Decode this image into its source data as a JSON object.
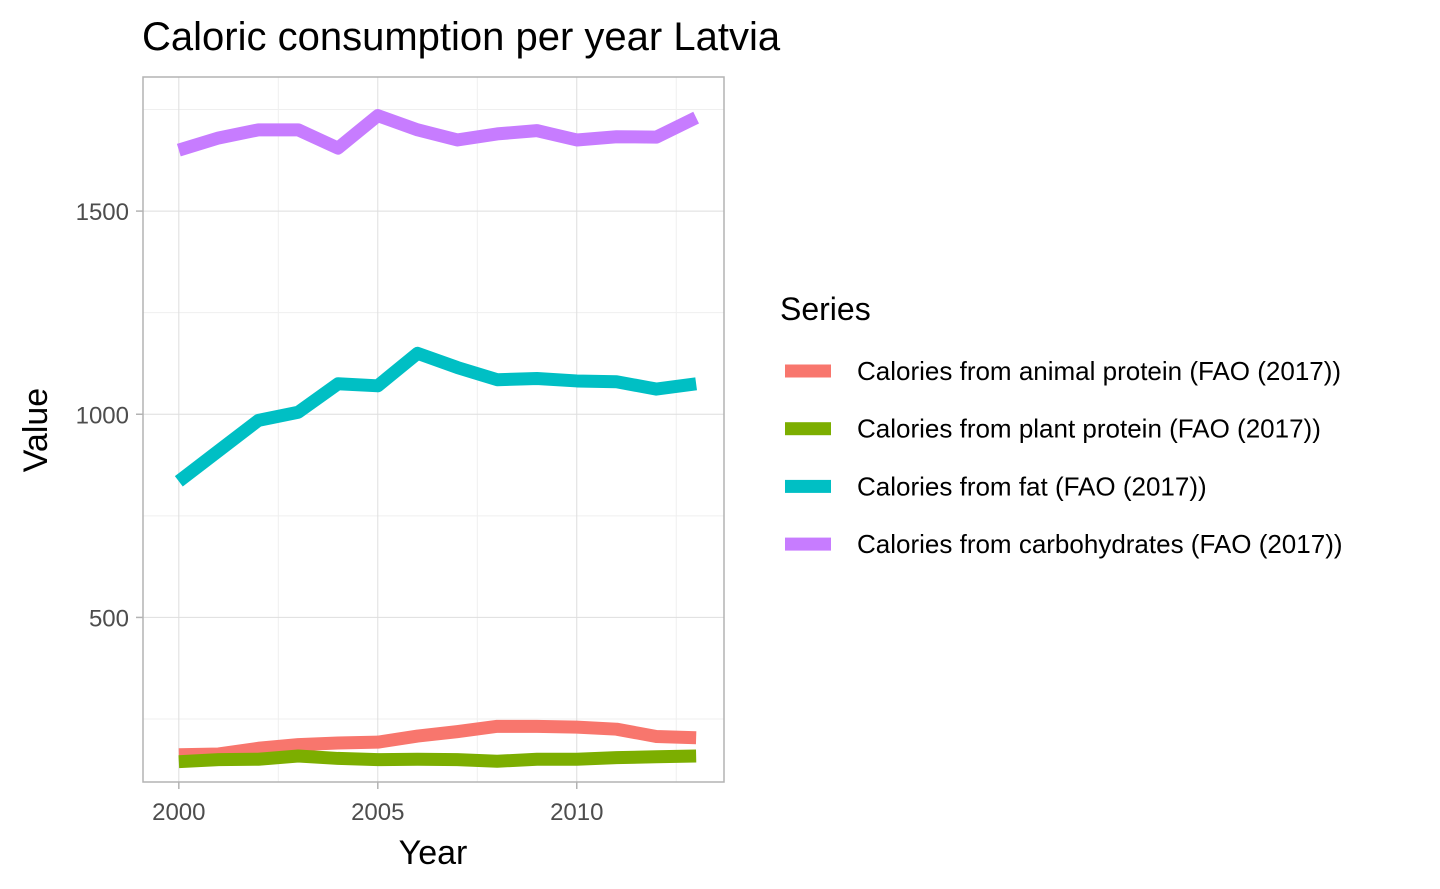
{
  "chart_data": {
    "type": "line",
    "title": "Caloric consumption per year Latvia",
    "xlabel": "Year",
    "ylabel": "Value",
    "x": [
      2000,
      2001,
      2002,
      2003,
      2004,
      2005,
      2006,
      2007,
      2008,
      2009,
      2010,
      2011,
      2012,
      2013
    ],
    "xlim": [
      1999.1,
      2013.7
    ],
    "ylim": [
      95,
      1830
    ],
    "x_ticks": [
      2000,
      2005,
      2010
    ],
    "y_ticks": [
      500,
      1000,
      1500
    ],
    "grid": true,
    "legend": {
      "title": "Series",
      "position": "right"
    },
    "series": [
      {
        "name": "Calories from animal protein (FAO (2017))",
        "color": "#F8766D",
        "values": [
          162,
          164,
          178,
          187,
          191,
          193,
          208,
          219,
          232,
          232,
          230,
          225,
          207,
          204
        ]
      },
      {
        "name": "Calories from plant protein (FAO (2017))",
        "color": "#7CAE00",
        "values": [
          145,
          150,
          151,
          159,
          153,
          150,
          151,
          150,
          146,
          151,
          151,
          155,
          157,
          159
        ]
      },
      {
        "name": "Calories from fat (FAO (2017))",
        "color": "#00BFC4",
        "values": [
          835,
          910,
          985,
          1005,
          1075,
          1070,
          1150,
          1115,
          1085,
          1088,
          1082,
          1080,
          1062,
          1075
        ]
      },
      {
        "name": "Calories from carbohydrates (FAO (2017))",
        "color": "#C77CFF",
        "values": [
          1650,
          1680,
          1700,
          1700,
          1655,
          1735,
          1700,
          1675,
          1690,
          1698,
          1675,
          1683,
          1682,
          1730
        ]
      }
    ]
  }
}
